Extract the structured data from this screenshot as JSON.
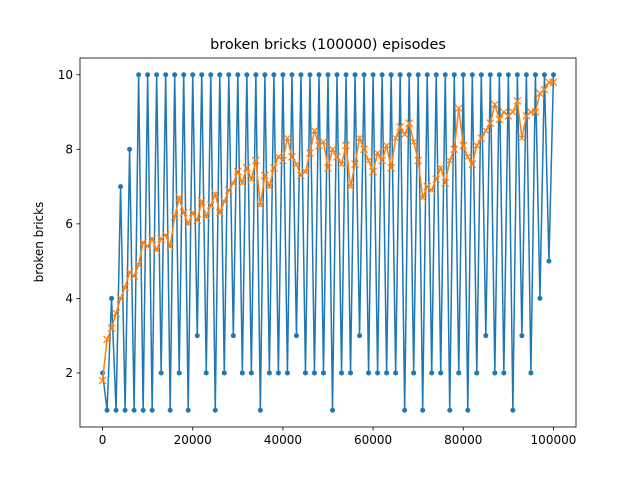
{
  "chart_data": {
    "type": "line",
    "title": "broken bricks (100000) episodes",
    "y_label": "broken bricks",
    "x": [
      0,
      1000,
      2000,
      3000,
      4000,
      5000,
      6000,
      7000,
      8000,
      9000,
      10000,
      11000,
      12000,
      13000,
      14000,
      15000,
      16000,
      17000,
      18000,
      19000,
      20000,
      21000,
      22000,
      23000,
      24000,
      25000,
      26000,
      27000,
      28000,
      29000,
      30000,
      31000,
      32000,
      33000,
      34000,
      35000,
      36000,
      37000,
      38000,
      39000,
      40000,
      41000,
      42000,
      43000,
      44000,
      45000,
      46000,
      47000,
      48000,
      49000,
      50000,
      51000,
      52000,
      53000,
      54000,
      55000,
      56000,
      57000,
      58000,
      59000,
      60000,
      61000,
      62000,
      63000,
      64000,
      65000,
      66000,
      67000,
      68000,
      69000,
      70000,
      71000,
      72000,
      73000,
      74000,
      75000,
      76000,
      77000,
      78000,
      79000,
      80000,
      81000,
      82000,
      83000,
      84000,
      85000,
      86000,
      87000,
      88000,
      89000,
      90000,
      91000,
      92000,
      93000,
      94000,
      95000,
      96000,
      97000,
      98000,
      99000,
      100000
    ],
    "series": [
      {
        "color": "#1f77b4",
        "marker": "dot",
        "values": [
          2,
          1,
          4,
          1,
          7,
          1,
          8,
          1,
          10,
          1,
          10,
          1,
          10,
          2,
          10,
          1,
          10,
          2,
          10,
          1,
          10,
          3,
          10,
          2,
          10,
          1,
          10,
          2,
          10,
          3,
          10,
          2,
          10,
          2,
          10,
          1,
          10,
          2,
          10,
          2,
          10,
          2,
          10,
          3,
          10,
          2,
          10,
          2,
          10,
          2,
          10,
          1,
          10,
          2,
          10,
          2,
          10,
          3,
          10,
          2,
          10,
          2,
          10,
          2,
          10,
          2,
          10,
          1,
          10,
          2,
          10,
          1,
          10,
          2,
          10,
          2,
          10,
          1,
          10,
          2,
          10,
          1,
          10,
          2,
          10,
          3,
          10,
          2,
          10,
          2,
          10,
          1,
          10,
          3,
          10,
          2,
          10,
          4,
          10,
          5,
          10
        ]
      },
      {
        "color": "#ff7f0e",
        "marker": "x",
        "values": [
          1.8,
          2.9,
          3.2,
          3.6,
          4.0,
          4.3,
          4.7,
          4.6,
          4.9,
          5.5,
          5.4,
          5.6,
          5.3,
          5.6,
          5.7,
          5.4,
          6.2,
          6.7,
          6.3,
          6.0,
          6.3,
          6.1,
          6.6,
          6.2,
          6.5,
          6.8,
          6.3,
          6.6,
          6.9,
          7.1,
          7.4,
          7.1,
          7.5,
          7.2,
          7.7,
          6.5,
          7.3,
          7.0,
          7.5,
          7.8,
          7.7,
          8.3,
          7.8,
          7.6,
          7.3,
          7.4,
          7.9,
          8.5,
          8.1,
          8.2,
          7.5,
          8.0,
          7.8,
          7.6,
          8.1,
          7.0,
          7.6,
          8.3,
          8.0,
          7.7,
          7.4,
          7.9,
          7.7,
          8.1,
          7.5,
          8.3,
          8.6,
          8.4,
          8.7,
          8.2,
          7.7,
          6.7,
          7.0,
          6.9,
          7.2,
          7.5,
          7.1,
          7.7,
          8.0,
          9.1,
          8.1,
          7.8,
          7.6,
          8.1,
          8.3,
          8.5,
          8.7,
          9.2,
          8.8,
          9.0,
          8.9,
          9.0,
          9.3,
          8.3,
          8.9,
          9.0,
          9.0,
          9.5,
          9.6,
          9.8,
          9.8
        ]
      }
    ],
    "xlim": [
      -5000,
      105000
    ],
    "ylim": [
      0.55,
      10.45
    ],
    "xticks": [
      0,
      20000,
      40000,
      60000,
      80000,
      100000
    ],
    "yticks": [
      2,
      4,
      6,
      8,
      10
    ]
  }
}
